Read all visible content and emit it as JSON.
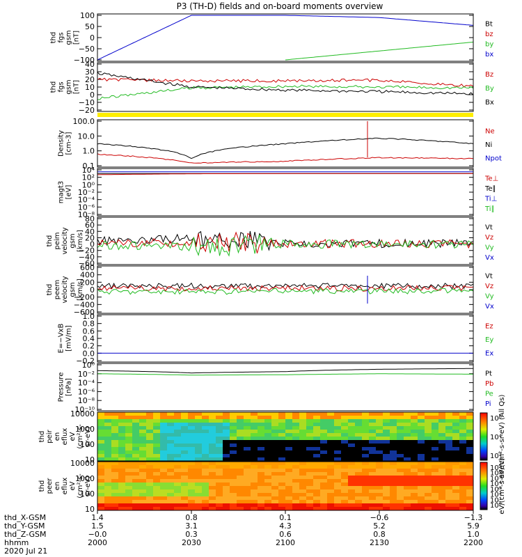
{
  "title": "P3 (TH-D) fields and on-board moments overview",
  "colors": {
    "black": "#000000",
    "red": "#cc0000",
    "green": "#22bb22",
    "blue": "#0000cc",
    "yellow": "#ffee00"
  },
  "panels": [
    {
      "id": "fgs",
      "ylabel": [
        "thd",
        "fgs",
        "gsm",
        "[nT]"
      ],
      "yticks": [
        "100",
        "50",
        "0",
        "−50",
        "−100"
      ],
      "legend": [
        {
          "text": "Bt",
          "color": "black"
        },
        {
          "text": "bz",
          "color": "red"
        },
        {
          "text": "by",
          "color": "green"
        },
        {
          "text": "bx",
          "color": "blue"
        }
      ]
    },
    {
      "id": "fgs-zoom",
      "ylabel": [
        "thd",
        "fgs",
        "gsm",
        "[nT]"
      ],
      "yticks": [
        "40",
        "30",
        "20",
        "10",
        "0",
        "−10",
        "−20"
      ],
      "legend": [
        {
          "text": "Bz",
          "color": "red"
        },
        {
          "text": "By",
          "color": "green"
        },
        {
          "text": "Bx",
          "color": "black"
        }
      ]
    },
    {
      "id": "density",
      "ylabel": [
        "Density",
        "[cm-3]"
      ],
      "yticks": [
        "100.0",
        "10.0",
        "1.0",
        "0.1"
      ],
      "legend": [
        {
          "text": "Ne",
          "color": "red"
        },
        {
          "text": "Ni",
          "color": "black"
        },
        {
          "text": "Npot",
          "color": "blue"
        }
      ]
    },
    {
      "id": "temperature",
      "ylabel": [
        "magt3",
        "[eV]"
      ],
      "yticks": [
        "10⁴",
        "10²",
        "10⁰",
        "10⁻²",
        "10⁻⁴",
        "10⁻⁶",
        "10⁻⁸"
      ],
      "legend": [
        {
          "text": "Te⊥",
          "color": "red"
        },
        {
          "text": "Te∥",
          "color": "black"
        },
        {
          "text": "Ti⊥",
          "color": "blue"
        },
        {
          "text": "Ti∥",
          "color": "green"
        }
      ]
    },
    {
      "id": "ion-velocity",
      "ylabel": [
        "thd",
        "peim",
        "velocity",
        "gsm",
        "[km/s]"
      ],
      "yticks": [
        "80",
        "60",
        "40",
        "20",
        "0",
        "−20",
        "−40",
        "−60"
      ],
      "legend": [
        {
          "text": "Vt",
          "color": "black"
        },
        {
          "text": "Vz",
          "color": "red"
        },
        {
          "text": "Vy",
          "color": "green"
        },
        {
          "text": "Vx",
          "color": "blue"
        }
      ]
    },
    {
      "id": "electron-velocity",
      "ylabel": [
        "thd",
        "peem",
        "velocity",
        "gsm",
        "[km/s]"
      ],
      "yticks": [
        "600",
        "400",
        "200",
        "0",
        "−200",
        "−400",
        "−600"
      ],
      "legend": [
        {
          "text": "Vt",
          "color": "black"
        },
        {
          "text": "Vz",
          "color": "red"
        },
        {
          "text": "Vy",
          "color": "green"
        },
        {
          "text": "Vx",
          "color": "blue"
        }
      ]
    },
    {
      "id": "efield",
      "ylabel": [
        "E=−VxB",
        "[mV/m]"
      ],
      "yticks": [
        "1.0",
        "0.8",
        "0.6",
        "0.4",
        "0.2",
        "0.0",
        "−0.2"
      ],
      "legend": [
        {
          "text": "Ez",
          "color": "red"
        },
        {
          "text": "Ey",
          "color": "green"
        },
        {
          "text": "Ex",
          "color": "blue"
        }
      ]
    },
    {
      "id": "pressure",
      "ylabel": [
        "Pressure",
        "[nPa]"
      ],
      "yticks": [
        "10⁰",
        "10⁻²",
        "10⁻⁴",
        "10⁻⁶",
        "10⁻⁸",
        "10⁻¹⁰"
      ],
      "legend": [
        {
          "text": "Pt",
          "color": "black"
        },
        {
          "text": "Pb",
          "color": "red"
        },
        {
          "text": "Pe",
          "color": "green"
        },
        {
          "text": "Pi",
          "color": "blue"
        }
      ]
    },
    {
      "id": "peir-spec",
      "ylabel": [
        "thd",
        "peir",
        "en",
        "eflux",
        "eV",
        "(cm²-s-",
        "sr-eV)"
      ],
      "yticks": [
        "10000",
        "1000",
        "100",
        "10"
      ],
      "colorbar": {
        "ticks": [
          "10⁶",
          "10⁴",
          "10²"
        ],
        "label": "eV/(cm²-s-sr-eV) (All Qs)"
      }
    },
    {
      "id": "peer-spec",
      "ylabel": [
        "thd",
        "peer",
        "en",
        "eflux",
        "eV",
        "(cm²-s-",
        "sr-eV)"
      ],
      "yticks": [
        "10000",
        "1000",
        "100",
        "10"
      ],
      "colorbar": {
        "ticks": [
          "10⁷",
          "10⁶",
          "10⁵",
          "10⁴",
          "10³",
          "10²",
          "10¹",
          "10⁰"
        ],
        "label": "eV/(cm²-s-sr-eV)"
      }
    }
  ],
  "footer": {
    "row_labels": [
      "thd_X-GSM",
      "thd_Y-GSM",
      "thd_Z-GSM",
      "hhmm",
      "2020 Jul 21"
    ],
    "columns": [
      {
        "values": [
          "1.4",
          "1.5",
          "−0.0",
          "2000"
        ]
      },
      {
        "values": [
          "0.8",
          "3.1",
          "0.3",
          "2030"
        ]
      },
      {
        "values": [
          "0.1",
          "4.3",
          "0.6",
          "2100"
        ]
      },
      {
        "values": [
          "−0.6",
          "5.2",
          "0.8",
          "2130"
        ]
      },
      {
        "values": [
          "−1.3",
          "5.9",
          "1.0",
          "2200"
        ]
      }
    ]
  },
  "chart_data": [
    {
      "type": "line",
      "panel": "fgs",
      "ylim": [
        -100,
        100
      ],
      "x": [
        "2000",
        "2030",
        "2100",
        "2130",
        "2200"
      ],
      "series": [
        {
          "name": "Bt",
          "values": [
            null,
            null,
            null,
            null,
            null
          ]
        },
        {
          "name": "bx",
          "values": [
            -100,
            100,
            100,
            90,
            55
          ]
        },
        {
          "name": "by",
          "values": [
            null,
            null,
            -100,
            -60,
            -20
          ]
        }
      ]
    },
    {
      "type": "line",
      "panel": "fgs-zoom",
      "ylim": [
        -20,
        40
      ],
      "x": [
        "2000",
        "2030",
        "2100",
        "2130",
        "2200"
      ],
      "series": [
        {
          "name": "Bz",
          "values": [
            20,
            18,
            18,
            19,
            11
          ]
        },
        {
          "name": "By",
          "values": [
            -5,
            9,
            11,
            10,
            9
          ]
        },
        {
          "name": "Bx",
          "values": [
            28,
            10,
            6,
            4,
            1
          ]
        }
      ]
    },
    {
      "type": "line",
      "panel": "density",
      "ylim": [
        0.1,
        100
      ],
      "log": true,
      "x": [
        "2000",
        "2030",
        "2100",
        "2130",
        "2200"
      ],
      "series": [
        {
          "name": "Ni",
          "values": [
            3.0,
            0.3,
            3.0,
            7.0,
            3.0
          ]
        },
        {
          "name": "Ne",
          "values": [
            0.6,
            0.15,
            0.2,
            0.35,
            0.3
          ]
        }
      ]
    },
    {
      "type": "line",
      "panel": "temperature",
      "ylim": [
        1e-08,
        10000.0
      ],
      "log": true,
      "x": [
        "2000",
        "2030",
        "2100",
        "2130",
        "2200"
      ],
      "series": [
        {
          "name": "Ti⊥",
          "values": [
            3000,
            3000,
            3000,
            3000,
            3000
          ]
        },
        {
          "name": "Te∥",
          "values": [
            1000,
            1000,
            1000,
            1000,
            1000
          ]
        },
        {
          "name": "Te⊥",
          "values": [
            500,
            900,
            1000,
            1000,
            1000
          ]
        }
      ]
    },
    {
      "type": "line",
      "panel": "ion-velocity",
      "ylim": [
        -60,
        80
      ],
      "x": [
        "2000",
        "2030",
        "2100",
        "2130",
        "2200"
      ],
      "series": [
        {
          "name": "Vt",
          "values": [
            10,
            20,
            2,
            2,
            2
          ]
        },
        {
          "name": "Vz",
          "values": [
            3,
            5,
            1,
            1,
            0
          ]
        },
        {
          "name": "Vy",
          "values": [
            -2,
            -10,
            0,
            0,
            0
          ]
        }
      ]
    },
    {
      "type": "line",
      "panel": "electron-velocity",
      "ylim": [
        -600,
        600
      ],
      "x": [
        "2000",
        "2030",
        "2100",
        "2130",
        "2200"
      ],
      "series": [
        {
          "name": "Vt",
          "values": [
            100,
            100,
            100,
            100,
            100
          ]
        },
        {
          "name": "Vz",
          "values": [
            50,
            30,
            40,
            30,
            50
          ]
        },
        {
          "name": "Vy",
          "values": [
            -50,
            -60,
            -40,
            -40,
            -30
          ]
        }
      ]
    },
    {
      "type": "line",
      "panel": "efield",
      "ylim": [
        -0.2,
        1.0
      ],
      "x": [
        "2000",
        "2030",
        "2100",
        "2130",
        "2200"
      ],
      "series": [
        {
          "name": "Ex",
          "values": [
            0.0,
            0.0,
            0.0,
            0.0,
            0.0
          ]
        }
      ]
    },
    {
      "type": "line",
      "panel": "pressure",
      "ylim": [
        1e-10,
        1
      ],
      "log": true,
      "x": [
        "2000",
        "2030",
        "2100",
        "2130",
        "2200"
      ],
      "series": [
        {
          "name": "Pt",
          "values": [
            0.05,
            0.015,
            0.03,
            0.1,
            0.15
          ]
        },
        {
          "name": "Pe",
          "values": [
            0.01,
            0.005,
            0.006,
            0.01,
            0.008
          ]
        }
      ]
    },
    {
      "type": "heatmap",
      "panel": "peir-spec",
      "ylim": [
        10,
        10000
      ],
      "x": [
        "2000",
        "2030",
        "2100",
        "2130",
        "2200"
      ]
    },
    {
      "type": "heatmap",
      "panel": "peer-spec",
      "ylim": [
        10,
        10000
      ],
      "x": [
        "2000",
        "2030",
        "2100",
        "2130",
        "2200"
      ]
    }
  ]
}
